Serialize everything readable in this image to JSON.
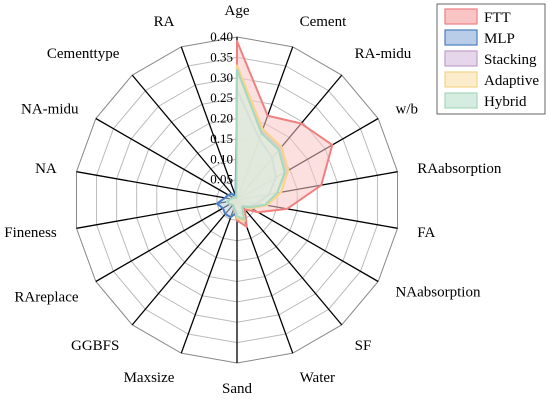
{
  "chart_data": {
    "type": "radar",
    "title": "",
    "axes": [
      "Age",
      "Cement",
      "RA-midu",
      "w/b",
      "RAabsorption",
      "FA",
      "NAabsorption",
      "SF",
      "Water",
      "Sand",
      "Maxsize",
      "GGBFS",
      "RAreplace",
      "Fineness",
      "NA",
      "NA-midu",
      "Cementtype",
      "RA"
    ],
    "rlim": [
      0,
      0.4
    ],
    "ticks": [
      "0",
      "0.05",
      "0.10",
      "0.15",
      "0.20",
      "0.25",
      "0.30",
      "0.35",
      "0.40"
    ],
    "grid": true,
    "legend_position": "top-right",
    "series": [
      {
        "name": "FTT",
        "stroke": "#f08080",
        "fill": "#f9c4c4",
        "values": [
          0.39,
          0.22,
          0.245,
          0.27,
          0.21,
          0.125,
          0.06,
          0.03,
          0.07,
          0.05,
          0.025,
          0.01,
          0.015,
          0.02,
          0.015,
          0.01,
          0.01,
          0.005
        ]
      },
      {
        "name": "MLP",
        "stroke": "#4a7fc0",
        "fill": "#b9cde8",
        "values": [
          0.27,
          0.16,
          0.135,
          0.11,
          0.08,
          0.05,
          0.03,
          0.02,
          0.035,
          0.03,
          0.045,
          0.045,
          0.04,
          0.05,
          0.03,
          0.025,
          0.02,
          0.01
        ]
      },
      {
        "name": "Stacking",
        "stroke": "#c0a0c8",
        "fill": "#e6d6ea",
        "values": [
          0.32,
          0.18,
          0.165,
          0.14,
          0.1,
          0.07,
          0.035,
          0.02,
          0.05,
          0.04,
          0.02,
          0.015,
          0.02,
          0.025,
          0.015,
          0.01,
          0.01,
          0.005
        ]
      },
      {
        "name": "Adaptive",
        "stroke": "#f5d58a",
        "fill": "#fbeccb",
        "values": [
          0.33,
          0.185,
          0.17,
          0.145,
          0.11,
          0.075,
          0.04,
          0.02,
          0.055,
          0.045,
          0.02,
          0.015,
          0.02,
          0.025,
          0.015,
          0.01,
          0.01,
          0.005
        ]
      },
      {
        "name": "Hybrid",
        "stroke": "#a8d8bf",
        "fill": "#d5ede0",
        "values": [
          0.32,
          0.175,
          0.16,
          0.135,
          0.1,
          0.07,
          0.035,
          0.02,
          0.05,
          0.04,
          0.02,
          0.015,
          0.02,
          0.025,
          0.015,
          0.01,
          0.01,
          0.005
        ]
      }
    ]
  }
}
